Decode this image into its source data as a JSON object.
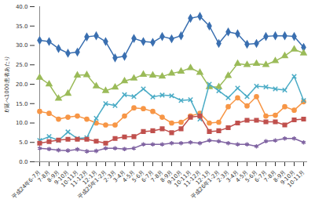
{
  "chart_data": {
    "type": "line",
    "y_label": "ℓ/延べ1000患者あたり",
    "categories": [
      "平成24年6-7月",
      "7-8月",
      "8-9月",
      "9-10月",
      "10-11月",
      "11-12月",
      "12-1月",
      "平成25年1-2月",
      "2-3月",
      "3-4月",
      "4-5月",
      "5-6月",
      "6-7月",
      "7-8月",
      "8-9月",
      "9-10月",
      "10-11月",
      "11-12月",
      "12-1月",
      "平成26年1-2月",
      "2-3月",
      "3-4月",
      "4-5月",
      "5-6月",
      "6-7月",
      "7-8月",
      "8-9月",
      "9-10月",
      "10-11月"
    ],
    "series": [
      {
        "color": "#3a6fb0",
        "marker": "diamond",
        "values": [
          31.3,
          31.0,
          29.2,
          28.0,
          28.3,
          32.2,
          32.5,
          31.0,
          26.8,
          27.2,
          31.8,
          31.0,
          30.8,
          32.3,
          31.7,
          32.5,
          37.0,
          37.5,
          35.0,
          30.5,
          33.5,
          33.0,
          30.3,
          30.5,
          32.3,
          32.5,
          32.5,
          32.3,
          29.5
        ]
      },
      {
        "color": "#9bbb59",
        "marker": "triangle",
        "values": [
          21.7,
          20.0,
          16.3,
          17.6,
          22.3,
          22.4,
          19.5,
          18.3,
          19.2,
          20.8,
          21.5,
          22.5,
          22.3,
          22.0,
          22.8,
          23.3,
          24.2,
          23.0,
          19.3,
          19.3,
          22.2,
          25.3,
          25.0,
          25.3,
          25.0,
          26.0,
          27.3,
          29.0,
          28.0
        ]
      },
      {
        "color": "#f79646",
        "marker": "circle",
        "values": [
          13.0,
          12.5,
          11.0,
          11.5,
          11.8,
          11.0,
          10.0,
          9.5,
          9.5,
          11.8,
          13.9,
          13.7,
          13.0,
          11.5,
          10.0,
          10.2,
          11.8,
          12.5,
          10.0,
          10.2,
          14.2,
          16.5,
          14.4,
          16.8,
          11.8,
          12.0,
          14.2,
          13.3,
          15.5
        ]
      },
      {
        "color": "#4bacc6",
        "marker": "times",
        "values": [
          5.5,
          6.5,
          5.5,
          7.7,
          6.0,
          6.2,
          11.2,
          15.0,
          14.5,
          17.3,
          16.8,
          18.8,
          16.7,
          17.2,
          17.0,
          15.8,
          16.0,
          11.0,
          20.0,
          18.3,
          16.5,
          19.0,
          16.8,
          19.5,
          19.3,
          18.8,
          18.5,
          22.0,
          15.8
        ]
      },
      {
        "color": "#c0504d",
        "marker": "square",
        "values": [
          4.8,
          5.2,
          5.6,
          5.8,
          5.8,
          5.8,
          5.3,
          4.8,
          6.0,
          6.4,
          6.5,
          7.8,
          8.0,
          8.5,
          7.5,
          8.5,
          11.5,
          11.8,
          7.8,
          8.0,
          8.8,
          10.0,
          10.7,
          10.7,
          10.3,
          10.3,
          9.5,
          10.8,
          11.0
        ]
      },
      {
        "color": "#8064a2",
        "marker": "asterisk",
        "values": [
          3.5,
          3.3,
          3.0,
          2.9,
          3.2,
          2.7,
          2.8,
          3.5,
          3.5,
          3.3,
          3.5,
          4.5,
          4.5,
          4.5,
          4.8,
          4.8,
          5.0,
          4.8,
          5.5,
          5.3,
          4.8,
          4.5,
          4.5,
          4.0,
          5.3,
          5.5,
          6.0,
          6.0,
          5.0
        ]
      }
    ],
    "ylim": [
      0,
      40
    ],
    "yticks": [
      {
        "value": 0,
        "label": "0.0"
      },
      {
        "value": 5,
        "label": "5.0"
      },
      {
        "value": 10,
        "label": "10.0"
      },
      {
        "value": 15,
        "label": "15.0"
      },
      {
        "value": 20,
        "label": "20.0"
      },
      {
        "value": 25,
        "label": "25.0"
      },
      {
        "value": 30,
        "label": "30.0"
      },
      {
        "value": 35,
        "label": "35.0"
      },
      {
        "value": 40,
        "label": "40.0"
      }
    ],
    "grid": false
  }
}
